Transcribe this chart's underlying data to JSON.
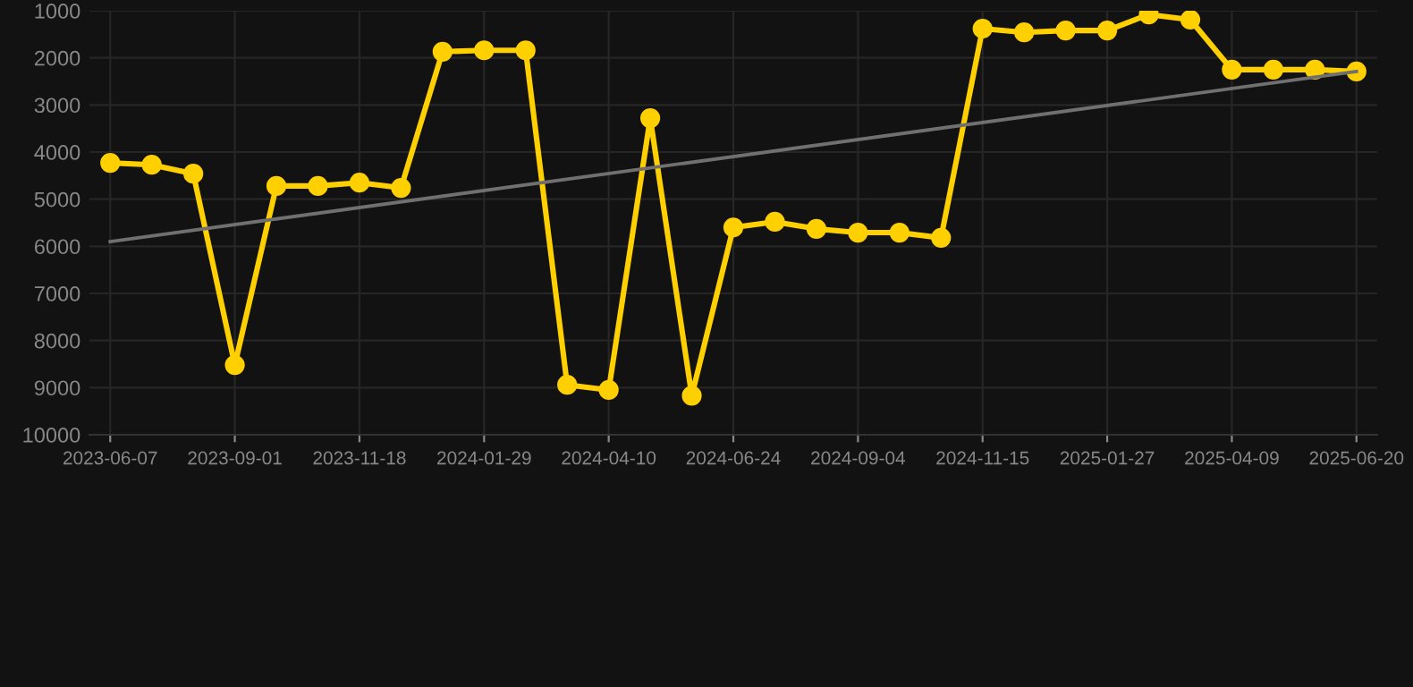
{
  "chart_data": {
    "type": "line",
    "categories": [
      "2023-06-07",
      null,
      null,
      "2023-09-01",
      null,
      null,
      "2023-11-18",
      null,
      null,
      "2024-01-29",
      null,
      null,
      "2024-04-10",
      null,
      null,
      "2024-06-24",
      null,
      null,
      "2024-09-04",
      null,
      null,
      "2024-11-15",
      null,
      null,
      "2025-01-27",
      null,
      null,
      "2025-04-09",
      null,
      null,
      "2025-06-20"
    ],
    "series": [
      {
        "color": "#ffd000",
        "marker": "circle",
        "values": [
          4230,
          4270,
          4460,
          8520,
          4720,
          4720,
          4650,
          4760,
          1870,
          1840,
          1840,
          8940,
          9050,
          3280,
          9170,
          5600,
          5480,
          5630,
          5710,
          5710,
          5820,
          1380,
          1460,
          1420,
          1420,
          1080,
          1190,
          2250,
          2250,
          2250,
          2290
        ]
      },
      {
        "type": "line",
        "color": "#707070",
        "marker": "none",
        "values": [
          5900,
          null,
          null,
          null,
          null,
          null,
          null,
          null,
          null,
          null,
          null,
          null,
          null,
          null,
          null,
          null,
          null,
          null,
          null,
          null,
          null,
          null,
          null,
          null,
          null,
          null,
          null,
          null,
          null,
          null,
          2290
        ]
      }
    ],
    "ylim": [
      10000,
      1000
    ],
    "yticks": [
      1000,
      2000,
      3000,
      4000,
      5000,
      6000,
      7000,
      8000,
      9000,
      10000
    ],
    "grid": true
  }
}
